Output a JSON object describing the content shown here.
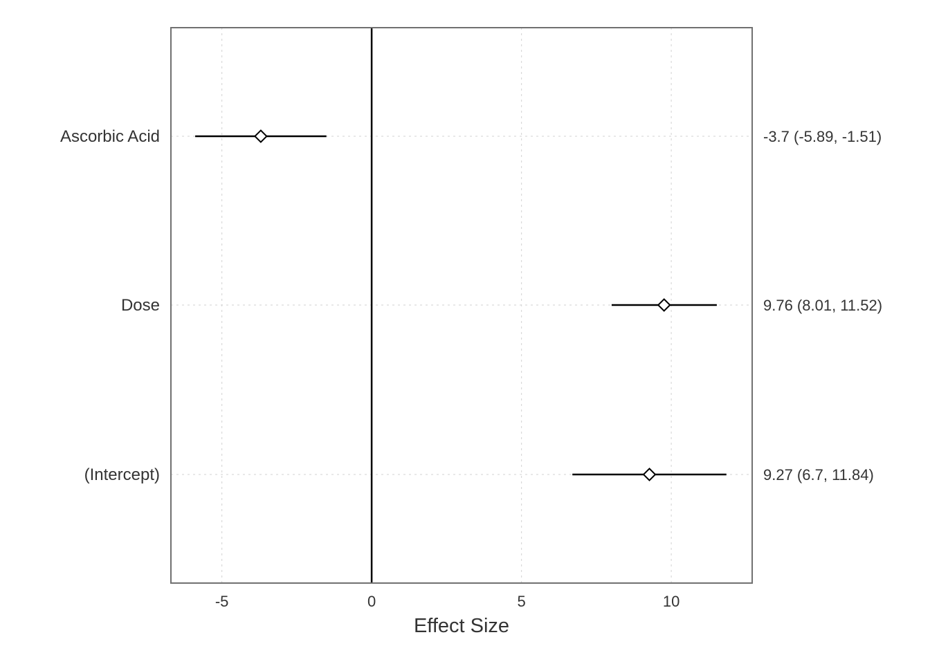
{
  "chart_data": {
    "type": "forest",
    "title": "",
    "xlabel": "Effect Size",
    "ylabel": "",
    "xlim": [
      -6.7,
      12.7
    ],
    "xticks": [
      -5,
      0,
      5,
      10
    ],
    "reference_line": 0,
    "grid": true,
    "rows": [
      {
        "term": "Ascorbic Acid",
        "estimate": -3.7,
        "lower": -5.89,
        "upper": -1.51,
        "label": "-3.7 (-5.89, -1.51)"
      },
      {
        "term": "Dose",
        "estimate": 9.76,
        "lower": 8.01,
        "upper": 11.52,
        "label": "9.76 (8.01, 11.52)"
      },
      {
        "term": "(Intercept)",
        "estimate": 9.27,
        "lower": 6.7,
        "upper": 11.84,
        "label": "9.27 (6.7, 11.84)"
      }
    ],
    "colors": {
      "marker": "#000000",
      "panel_border": "#707070",
      "grid": "#d9d9d9",
      "text": "#333333"
    }
  }
}
